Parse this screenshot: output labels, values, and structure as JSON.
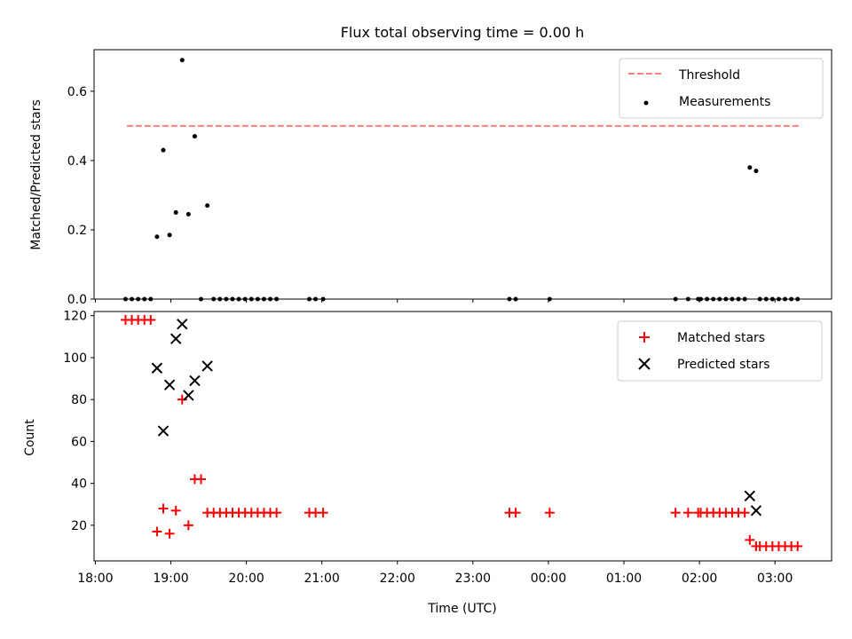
{
  "title": "Flux total observing time = 0.00 h",
  "chart_data": [
    {
      "type": "scatter",
      "ylabel": "Matched/Predicted stars",
      "xlim": [
        "2018-01-01T17:59",
        "2018-01-02T03:45"
      ],
      "ylim": [
        0,
        0.72
      ],
      "yticks": [
        0.0,
        0.2,
        0.4,
        0.6
      ],
      "legend_location": "top-right",
      "legend": [
        {
          "label": "Threshold",
          "style": "dashed-line",
          "color": "#ff7f7f"
        },
        {
          "label": "Measurements",
          "style": "dot",
          "color": "#000000"
        }
      ],
      "threshold": {
        "value": 0.5,
        "from": "2018-01-01T18:25",
        "to": "2018-01-02T03:20"
      },
      "series": [
        {
          "name": "Measurements",
          "color": "#000000",
          "points": [
            [
              "2018-01-01T18:24",
              0.0
            ],
            [
              "2018-01-01T18:29",
              0.0
            ],
            [
              "2018-01-01T18:34",
              0.0
            ],
            [
              "2018-01-01T18:39",
              0.0
            ],
            [
              "2018-01-01T18:44",
              0.0
            ],
            [
              "2018-01-01T18:49",
              0.18
            ],
            [
              "2018-01-01T18:54",
              0.43
            ],
            [
              "2018-01-01T18:59",
              0.185
            ],
            [
              "2018-01-01T19:04",
              0.25
            ],
            [
              "2018-01-01T19:09",
              0.69
            ],
            [
              "2018-01-01T19:14",
              0.245
            ],
            [
              "2018-01-01T19:19",
              0.47
            ],
            [
              "2018-01-01T19:24",
              0.0
            ],
            [
              "2018-01-01T19:29",
              0.27
            ],
            [
              "2018-01-01T19:34",
              0.0
            ],
            [
              "2018-01-01T19:39",
              0.0
            ],
            [
              "2018-01-01T19:44",
              0.0
            ],
            [
              "2018-01-01T19:49",
              0.0
            ],
            [
              "2018-01-01T19:54",
              0.0
            ],
            [
              "2018-01-01T19:59",
              0.0
            ],
            [
              "2018-01-01T20:04",
              0.0
            ],
            [
              "2018-01-01T20:09",
              0.0
            ],
            [
              "2018-01-01T20:14",
              0.0
            ],
            [
              "2018-01-01T20:19",
              0.0
            ],
            [
              "2018-01-01T20:24",
              0.0
            ],
            [
              "2018-01-01T20:50",
              0.0
            ],
            [
              "2018-01-01T20:55",
              0.0
            ],
            [
              "2018-01-01T21:01",
              0.0
            ],
            [
              "2018-01-01T23:29",
              0.0
            ],
            [
              "2018-01-01T23:34",
              0.0
            ],
            [
              "2018-01-02T00:01",
              0.0
            ],
            [
              "2018-01-02T01:41",
              0.0
            ],
            [
              "2018-01-02T01:51",
              0.0
            ],
            [
              "2018-01-02T01:59",
              0.0
            ],
            [
              "2018-01-02T02:01",
              0.0
            ],
            [
              "2018-01-02T02:06",
              0.0
            ],
            [
              "2018-01-02T02:11",
              0.0
            ],
            [
              "2018-01-02T02:16",
              0.0
            ],
            [
              "2018-01-02T02:21",
              0.0
            ],
            [
              "2018-01-02T02:26",
              0.0
            ],
            [
              "2018-01-02T02:31",
              0.0
            ],
            [
              "2018-01-02T02:36",
              0.0
            ],
            [
              "2018-01-02T02:40",
              0.38
            ],
            [
              "2018-01-02T02:45",
              0.37
            ],
            [
              "2018-01-02T02:48",
              0.0
            ],
            [
              "2018-01-02T02:53",
              0.0
            ],
            [
              "2018-01-02T02:58",
              0.0
            ],
            [
              "2018-01-02T03:03",
              0.0
            ],
            [
              "2018-01-02T03:08",
              0.0
            ],
            [
              "2018-01-02T03:13",
              0.0
            ],
            [
              "2018-01-02T03:18",
              0.0
            ]
          ]
        }
      ]
    },
    {
      "type": "scatter",
      "ylabel": "Count",
      "xlabel": "Time (UTC)",
      "xlim": [
        "2018-01-01T17:59",
        "2018-01-02T03:45"
      ],
      "ylim": [
        3,
        122
      ],
      "yticks": [
        20,
        40,
        60,
        80,
        100,
        120
      ],
      "xticks": [
        {
          "t": "2018-01-01T18:00",
          "label": "18:00"
        },
        {
          "t": "2018-01-01T19:00",
          "label": "19:00"
        },
        {
          "t": "2018-01-01T20:00",
          "label": "20:00"
        },
        {
          "t": "2018-01-01T21:00",
          "label": "21:00"
        },
        {
          "t": "2018-01-01T22:00",
          "label": "22:00"
        },
        {
          "t": "2018-01-01T23:00",
          "label": "23:00"
        },
        {
          "t": "2018-01-02T00:00",
          "label": "00:00"
        },
        {
          "t": "2018-01-02T01:00",
          "label": "01:00"
        },
        {
          "t": "2018-01-02T02:00",
          "label": "02:00"
        },
        {
          "t": "2018-01-02T03:00",
          "label": "03:00"
        }
      ],
      "legend_location": "top-right",
      "legend": [
        {
          "label": "Matched stars",
          "style": "plus",
          "color": "#ff0000"
        },
        {
          "label": "Predicted stars",
          "style": "x",
          "color": "#000000"
        }
      ],
      "series": [
        {
          "name": "Matched stars",
          "marker": "plus",
          "color": "#ff0000",
          "points": [
            [
              "2018-01-01T18:24",
              118
            ],
            [
              "2018-01-01T18:29",
              118
            ],
            [
              "2018-01-01T18:34",
              118
            ],
            [
              "2018-01-01T18:39",
              118
            ],
            [
              "2018-01-01T18:44",
              118
            ],
            [
              "2018-01-01T18:49",
              17
            ],
            [
              "2018-01-01T18:54",
              28
            ],
            [
              "2018-01-01T18:59",
              16
            ],
            [
              "2018-01-01T19:04",
              27
            ],
            [
              "2018-01-01T19:09",
              80
            ],
            [
              "2018-01-01T19:14",
              20
            ],
            [
              "2018-01-01T19:19",
              42
            ],
            [
              "2018-01-01T19:24",
              42
            ],
            [
              "2018-01-01T19:29",
              26
            ],
            [
              "2018-01-01T19:34",
              26
            ],
            [
              "2018-01-01T19:39",
              26
            ],
            [
              "2018-01-01T19:44",
              26
            ],
            [
              "2018-01-01T19:49",
              26
            ],
            [
              "2018-01-01T19:54",
              26
            ],
            [
              "2018-01-01T19:59",
              26
            ],
            [
              "2018-01-01T20:04",
              26
            ],
            [
              "2018-01-01T20:09",
              26
            ],
            [
              "2018-01-01T20:14",
              26
            ],
            [
              "2018-01-01T20:19",
              26
            ],
            [
              "2018-01-01T20:24",
              26
            ],
            [
              "2018-01-01T20:50",
              26
            ],
            [
              "2018-01-01T20:55",
              26
            ],
            [
              "2018-01-01T21:01",
              26
            ],
            [
              "2018-01-01T23:29",
              26
            ],
            [
              "2018-01-01T23:34",
              26
            ],
            [
              "2018-01-02T00:01",
              26
            ],
            [
              "2018-01-02T01:41",
              26
            ],
            [
              "2018-01-02T01:51",
              26
            ],
            [
              "2018-01-02T01:59",
              26
            ],
            [
              "2018-01-02T02:01",
              26
            ],
            [
              "2018-01-02T02:06",
              26
            ],
            [
              "2018-01-02T02:11",
              26
            ],
            [
              "2018-01-02T02:16",
              26
            ],
            [
              "2018-01-02T02:21",
              26
            ],
            [
              "2018-01-02T02:26",
              26
            ],
            [
              "2018-01-02T02:31",
              26
            ],
            [
              "2018-01-02T02:36",
              26
            ],
            [
              "2018-01-02T02:40",
              13
            ],
            [
              "2018-01-02T02:45",
              10
            ],
            [
              "2018-01-02T02:48",
              10
            ],
            [
              "2018-01-02T02:53",
              10
            ],
            [
              "2018-01-02T02:58",
              10
            ],
            [
              "2018-01-02T03:03",
              10
            ],
            [
              "2018-01-02T03:08",
              10
            ],
            [
              "2018-01-02T03:13",
              10
            ],
            [
              "2018-01-02T03:18",
              10
            ]
          ]
        },
        {
          "name": "Predicted stars",
          "marker": "x",
          "color": "#000000",
          "points": [
            [
              "2018-01-01T18:49",
              95
            ],
            [
              "2018-01-01T18:54",
              65
            ],
            [
              "2018-01-01T18:59",
              87
            ],
            [
              "2018-01-01T19:04",
              109
            ],
            [
              "2018-01-01T19:09",
              116
            ],
            [
              "2018-01-01T19:14",
              82
            ],
            [
              "2018-01-01T19:19",
              89
            ],
            [
              "2018-01-01T19:29",
              96
            ],
            [
              "2018-01-02T02:40",
              34
            ],
            [
              "2018-01-02T02:45",
              27
            ]
          ]
        }
      ]
    }
  ]
}
